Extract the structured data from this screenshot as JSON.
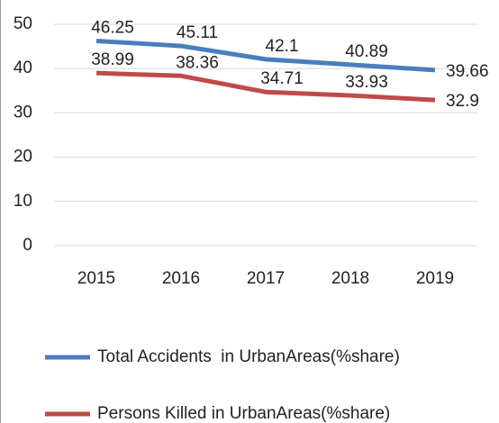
{
  "chart_data": {
    "type": "line",
    "categories": [
      "2015",
      "2016",
      "2017",
      "2018",
      "2019"
    ],
    "series": [
      {
        "name": "Total Accidents  in UrbanAreas(%share)",
        "color": "#4a7ebb",
        "values": [
          46.25,
          45.11,
          42.1,
          40.89,
          39.66
        ]
      },
      {
        "name": "Persons Killed in UrbanAreas(%share)",
        "color": "#be4b48",
        "values": [
          38.99,
          38.36,
          34.71,
          33.93,
          32.9
        ]
      }
    ],
    "ylim": [
      0,
      50
    ],
    "yticks": [
      0,
      10,
      20,
      30,
      40,
      50
    ],
    "grid": true,
    "legend": "bottom"
  }
}
